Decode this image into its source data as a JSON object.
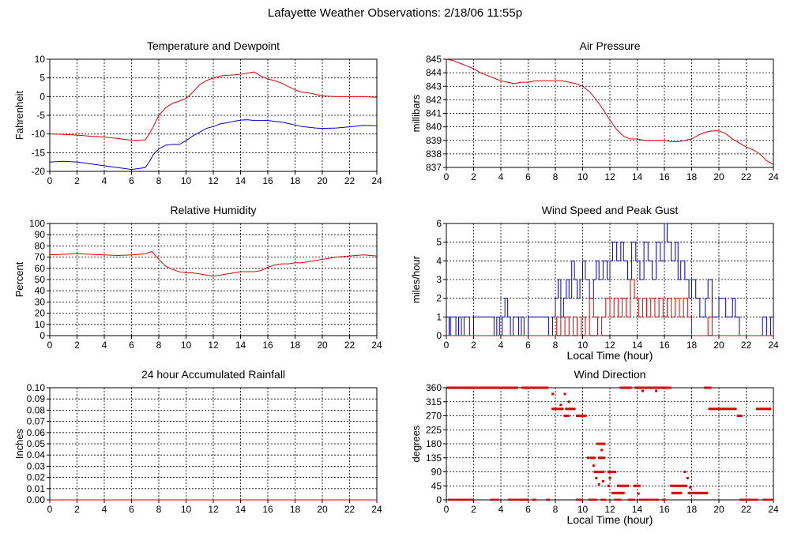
{
  "page_title": "Lafayette Weather Observations: 2/18/06 11:55p",
  "colors": {
    "red": "#dd0000",
    "blue": "#0000cc",
    "grid": "#000000"
  },
  "chart_data": [
    {
      "id": "temp",
      "type": "line",
      "title": "Temperature and Dewpoint",
      "xlabel": "",
      "ylabel": "Fahrenheit",
      "xlim": [
        0,
        24
      ],
      "ylim": [
        -20,
        10
      ],
      "x_ticks": [
        0,
        2,
        4,
        6,
        8,
        10,
        12,
        14,
        16,
        18,
        20,
        22,
        24
      ],
      "y_ticks": [
        -20,
        -15,
        -10,
        -5,
        0,
        5,
        10
      ],
      "series": [
        {
          "color": "#dd0000",
          "x": [
            0,
            1,
            2,
            3,
            4,
            5,
            6,
            7,
            7.3,
            7.6,
            8,
            8.5,
            9,
            9.5,
            10,
            10.5,
            11,
            11.5,
            12,
            12.5,
            13,
            13.5,
            14,
            14.5,
            15,
            15.5,
            16,
            16.5,
            17,
            17.5,
            18,
            18.5,
            19,
            19.5,
            20,
            21,
            22,
            23,
            24
          ],
          "y": [
            -10,
            -10.1,
            -10.3,
            -10.6,
            -10.8,
            -11.2,
            -11.7,
            -11.6,
            -10,
            -8,
            -5,
            -3,
            -1.8,
            -1.2,
            -0.5,
            1.2,
            3.2,
            4.3,
            5,
            5.5,
            5.7,
            5.8,
            6,
            6.3,
            6.6,
            5.5,
            4.7,
            4.3,
            3.6,
            2.7,
            1.8,
            1.2,
            1,
            0.6,
            0.2,
            0,
            0,
            0,
            -0.2
          ]
        },
        {
          "color": "#0000cc",
          "x": [
            0,
            1,
            2,
            3,
            4,
            5,
            6,
            7,
            7.3,
            7.6,
            8,
            8.5,
            9,
            9.5,
            10,
            10.5,
            11,
            11.5,
            12,
            12.5,
            13,
            13.5,
            14,
            14.5,
            15,
            15.5,
            16,
            16.5,
            17,
            17.5,
            18,
            18.5,
            19,
            19.5,
            20,
            21,
            22,
            23,
            24
          ],
          "y": [
            -17.5,
            -17.3,
            -17.5,
            -18,
            -18.5,
            -19,
            -19.5,
            -19,
            -17.5,
            -15.5,
            -14,
            -13,
            -12.8,
            -12.8,
            -11.8,
            -10.5,
            -9.5,
            -8.5,
            -8,
            -7.3,
            -7,
            -6.6,
            -6.3,
            -6.2,
            -6.4,
            -6.4,
            -6.4,
            -6.6,
            -6.8,
            -7.2,
            -7.6,
            -8,
            -8.2,
            -8.4,
            -8.5,
            -8.4,
            -8.1,
            -7.7,
            -7.8
          ]
        }
      ]
    },
    {
      "id": "pressure",
      "type": "line",
      "title": "Air Pressure",
      "xlabel": "",
      "ylabel": "millibars",
      "xlim": [
        0,
        24
      ],
      "ylim": [
        837,
        845
      ],
      "x_ticks": [
        0,
        2,
        4,
        6,
        8,
        10,
        12,
        14,
        16,
        18,
        20,
        22,
        24
      ],
      "y_ticks": [
        837,
        838,
        839,
        840,
        841,
        842,
        843,
        844,
        845
      ],
      "series": [
        {
          "color": "#dd0000",
          "x": [
            0,
            0.5,
            1,
            1.5,
            2,
            2.5,
            3,
            3.5,
            4,
            4.5,
            5,
            5.5,
            6,
            6.5,
            7,
            7.5,
            8,
            8.5,
            9,
            9.5,
            10,
            10.5,
            11,
            11.5,
            12,
            12.5,
            13,
            13.5,
            14,
            14.5,
            15,
            15.5,
            16,
            16.5,
            17,
            17.5,
            18,
            18.5,
            19,
            19.5,
            20,
            20.5,
            21,
            21.5,
            22,
            22.5,
            23,
            23.5,
            24
          ],
          "y": [
            845,
            844.9,
            844.7,
            844.5,
            844.3,
            844,
            843.8,
            843.6,
            843.4,
            843.3,
            843.2,
            843.3,
            843.3,
            843.4,
            843.4,
            843.4,
            843.4,
            843.4,
            843.3,
            843.2,
            843,
            842.6,
            842,
            841.3,
            840.5,
            839.8,
            839.3,
            839.1,
            839.1,
            839,
            839,
            839,
            839,
            838.9,
            838.9,
            839,
            839.1,
            839.4,
            839.6,
            839.7,
            839.7,
            839.5,
            839.1,
            838.8,
            838.5,
            838.3,
            838,
            837.5,
            837.2
          ]
        }
      ]
    },
    {
      "id": "humidity",
      "type": "line",
      "title": "Relative Humidity",
      "xlabel": "",
      "ylabel": "Percent",
      "xlim": [
        0,
        24
      ],
      "ylim": [
        0,
        100
      ],
      "x_ticks": [
        0,
        2,
        4,
        6,
        8,
        10,
        12,
        14,
        16,
        18,
        20,
        22,
        24
      ],
      "y_ticks": [
        0,
        10,
        20,
        30,
        40,
        50,
        60,
        70,
        80,
        90,
        100
      ],
      "series": [
        {
          "color": "#dd0000",
          "x": [
            0,
            1,
            2,
            3,
            4,
            5,
            6,
            7,
            7.5,
            8,
            8.5,
            9,
            9.5,
            10,
            10.5,
            11,
            11.5,
            12,
            12.5,
            13,
            13.5,
            14,
            14.5,
            15,
            15.5,
            16,
            16.5,
            17,
            17.5,
            18,
            18.5,
            19,
            19.5,
            20,
            21,
            22,
            23,
            24
          ],
          "y": [
            72,
            72.5,
            73,
            72.5,
            72,
            71.5,
            72,
            73,
            75,
            68,
            62,
            59,
            57,
            56,
            56,
            55,
            54,
            53,
            54,
            55,
            56,
            57,
            57,
            57,
            58,
            61,
            63,
            64,
            64,
            65,
            65,
            66,
            67,
            68,
            70,
            71,
            72,
            71
          ]
        }
      ]
    },
    {
      "id": "wind_speed",
      "type": "line",
      "title": "Wind Speed and Peak Gust",
      "xlabel": "Local Time (hour)",
      "ylabel": "miles/hour",
      "xlim": [
        0,
        24
      ],
      "ylim": [
        0,
        6
      ],
      "x_ticks": [
        0,
        2,
        4,
        6,
        8,
        10,
        12,
        14,
        16,
        18,
        20,
        22,
        24
      ],
      "y_ticks": [
        0,
        1,
        2,
        3,
        4,
        5,
        6
      ],
      "series": [
        {
          "color": "#0000cc",
          "x": [
            0,
            0.2,
            0.3,
            0.5,
            0.7,
            0.9,
            1.1,
            1.3,
            1.5,
            1.7,
            2,
            3,
            3.5,
            3.7,
            3.9,
            4.1,
            4.3,
            4.5,
            4.7,
            4.9,
            5.1,
            5.3,
            5.5,
            5.7,
            6,
            7,
            7.5,
            7.8,
            8,
            8.2,
            8.4,
            8.6,
            8.8,
            9,
            9.2,
            9.4,
            9.6,
            9.8,
            10,
            10.2,
            10.5,
            10.8,
            11,
            11.2,
            11.5,
            11.8,
            12,
            12.2,
            12.5,
            12.8,
            13,
            13.3,
            13.6,
            13.9,
            14.2,
            14.5,
            14.8,
            15.1,
            15.4,
            15.7,
            16,
            16.2,
            16.5,
            16.8,
            17,
            17.2,
            17.5,
            17.8,
            18,
            18.3,
            18.6,
            19,
            19.2,
            19.5,
            20,
            20.5,
            21,
            21.2,
            21.5,
            22,
            23,
            23.2,
            23.5,
            23.8,
            24
          ],
          "y": [
            1,
            0,
            1,
            1,
            0,
            1,
            0,
            1,
            1,
            0,
            1,
            1,
            0,
            1,
            0,
            1,
            2,
            1,
            0,
            1,
            1,
            0,
            1,
            0,
            1,
            1,
            0,
            1,
            2,
            3,
            1,
            2,
            3,
            2,
            4,
            3,
            2,
            3,
            4,
            3,
            2,
            3,
            4,
            3,
            4,
            3,
            4,
            5,
            4,
            5,
            4,
            3,
            5,
            4,
            3,
            5,
            4,
            3,
            5,
            4,
            6,
            5,
            4,
            5,
            3,
            4,
            3,
            2,
            3,
            2,
            1,
            2,
            3,
            1,
            2,
            1,
            2,
            1,
            0,
            0,
            0,
            1,
            0,
            1,
            0
          ]
        },
        {
          "color": "#dd0000",
          "x": [
            0,
            7.9,
            8.1,
            8.4,
            8.7,
            9,
            9.3,
            9.6,
            9.9,
            10.2,
            10.5,
            10.8,
            11.1,
            11.4,
            11.7,
            12,
            12.3,
            12.6,
            12.9,
            13.2,
            13.5,
            13.8,
            14.1,
            14.4,
            14.7,
            15,
            15.3,
            15.6,
            15.9,
            16.2,
            16.5,
            16.8,
            17.1,
            17.4,
            17.7,
            18,
            18.3,
            18.6,
            18.9,
            19.2,
            19.5,
            19.8,
            20,
            24
          ],
          "y": [
            0,
            0,
            1,
            0,
            1,
            0,
            1,
            0,
            1,
            0,
            2,
            1,
            0,
            1,
            2,
            1,
            2,
            1,
            2,
            1,
            3,
            2,
            1,
            2,
            1,
            2,
            1,
            2,
            1,
            2,
            1,
            2,
            1,
            2,
            1,
            0,
            0,
            0,
            0,
            1,
            0,
            0,
            0,
            0
          ]
        }
      ]
    },
    {
      "id": "rainfall",
      "type": "line",
      "title": "24 hour Accumulated Rainfall",
      "xlabel": "",
      "ylabel": "Inches",
      "xlim": [
        0,
        24
      ],
      "ylim": [
        0,
        0.1
      ],
      "x_ticks": [
        0,
        2,
        4,
        6,
        8,
        10,
        12,
        14,
        16,
        18,
        20,
        22,
        24
      ],
      "y_ticks": [
        0,
        0.01,
        0.02,
        0.03,
        0.04,
        0.05,
        0.06,
        0.07,
        0.08,
        0.09,
        0.1
      ],
      "y_tick_labels": [
        "0.00",
        "0.01",
        "0.02",
        "0.03",
        "0.04",
        "0.05",
        "0.06",
        "0.07",
        "0.08",
        "0.09",
        "0.10"
      ],
      "series": [
        {
          "color": "#dd0000",
          "x": [
            0,
            24
          ],
          "y": [
            0,
            0
          ]
        }
      ]
    },
    {
      "id": "wind_dir",
      "type": "scatter",
      "title": "Wind Direction",
      "xlabel": "Local Time (hour)",
      "ylabel": "degrees",
      "xlim": [
        0,
        24
      ],
      "ylim": [
        0,
        360
      ],
      "x_ticks": [
        0,
        2,
        4,
        6,
        8,
        10,
        12,
        14,
        16,
        18,
        20,
        22,
        24
      ],
      "y_ticks": [
        0,
        45,
        90,
        135,
        180,
        225,
        270,
        315,
        360
      ],
      "series": [
        {
          "color": "#dd0000",
          "segments": [
            [
              0.0,
              1.6,
              360
            ],
            [
              1.7,
              5.2,
              360
            ],
            [
              5.6,
              7.5,
              360
            ],
            [
              12.8,
              13.6,
              360
            ],
            [
              13.9,
              16.5,
              360
            ],
            [
              19.0,
              19.4,
              360
            ],
            [
              0.2,
              1.9,
              0
            ],
            [
              3.3,
              3.8,
              0
            ],
            [
              4.6,
              6.0,
              0
            ],
            [
              6.4,
              6.6,
              0
            ],
            [
              7.4,
              7.6,
              0
            ],
            [
              9.6,
              10.0,
              0
            ],
            [
              10.5,
              11.0,
              0
            ],
            [
              11.4,
              11.7,
              0
            ],
            [
              12.4,
              12.8,
              0
            ],
            [
              13.4,
              13.8,
              0
            ],
            [
              14.2,
              15.6,
              0
            ],
            [
              15.9,
              16.1,
              0
            ],
            [
              21.6,
              22.9,
              0
            ],
            [
              23.3,
              24.0,
              0
            ],
            [
              7.8,
              8.6,
              292
            ],
            [
              8.8,
              9.5,
              292
            ],
            [
              19.3,
              21.3,
              292
            ],
            [
              22.8,
              23.8,
              292
            ],
            [
              8.7,
              9.0,
              270
            ],
            [
              9.6,
              10.2,
              270
            ],
            [
              21.4,
              21.7,
              270
            ],
            [
              11.1,
              11.6,
              180
            ],
            [
              10.6,
              10.9,
              135
            ],
            [
              11.2,
              11.6,
              135
            ],
            [
              12.6,
              13.4,
              45
            ],
            [
              13.8,
              14.2,
              45
            ],
            [
              16.5,
              17.6,
              45
            ],
            [
              10.9,
              11.6,
              90
            ],
            [
              11.9,
              12.4,
              90
            ],
            [
              16.6,
              17.3,
              22
            ],
            [
              17.8,
              19.2,
              22
            ],
            [
              12.2,
              13.0,
              22
            ]
          ],
          "points": [
            [
              7.8,
              340
            ],
            [
              8.7,
              340
            ],
            [
              9.0,
              315
            ],
            [
              8.4,
              305
            ],
            [
              10.1,
              270
            ],
            [
              11.4,
              160
            ],
            [
              10.4,
              135
            ],
            [
              10.8,
              110
            ],
            [
              11.0,
              70
            ],
            [
              11.2,
              50
            ],
            [
              11.5,
              60
            ],
            [
              11.9,
              45
            ],
            [
              12.0,
              70
            ],
            [
              13.0,
              22
            ],
            [
              14.1,
              20
            ],
            [
              14.4,
              350
            ],
            [
              15.4,
              350
            ],
            [
              17.5,
              90
            ],
            [
              17.7,
              70
            ],
            [
              17.9,
              40
            ]
          ]
        }
      ]
    }
  ]
}
